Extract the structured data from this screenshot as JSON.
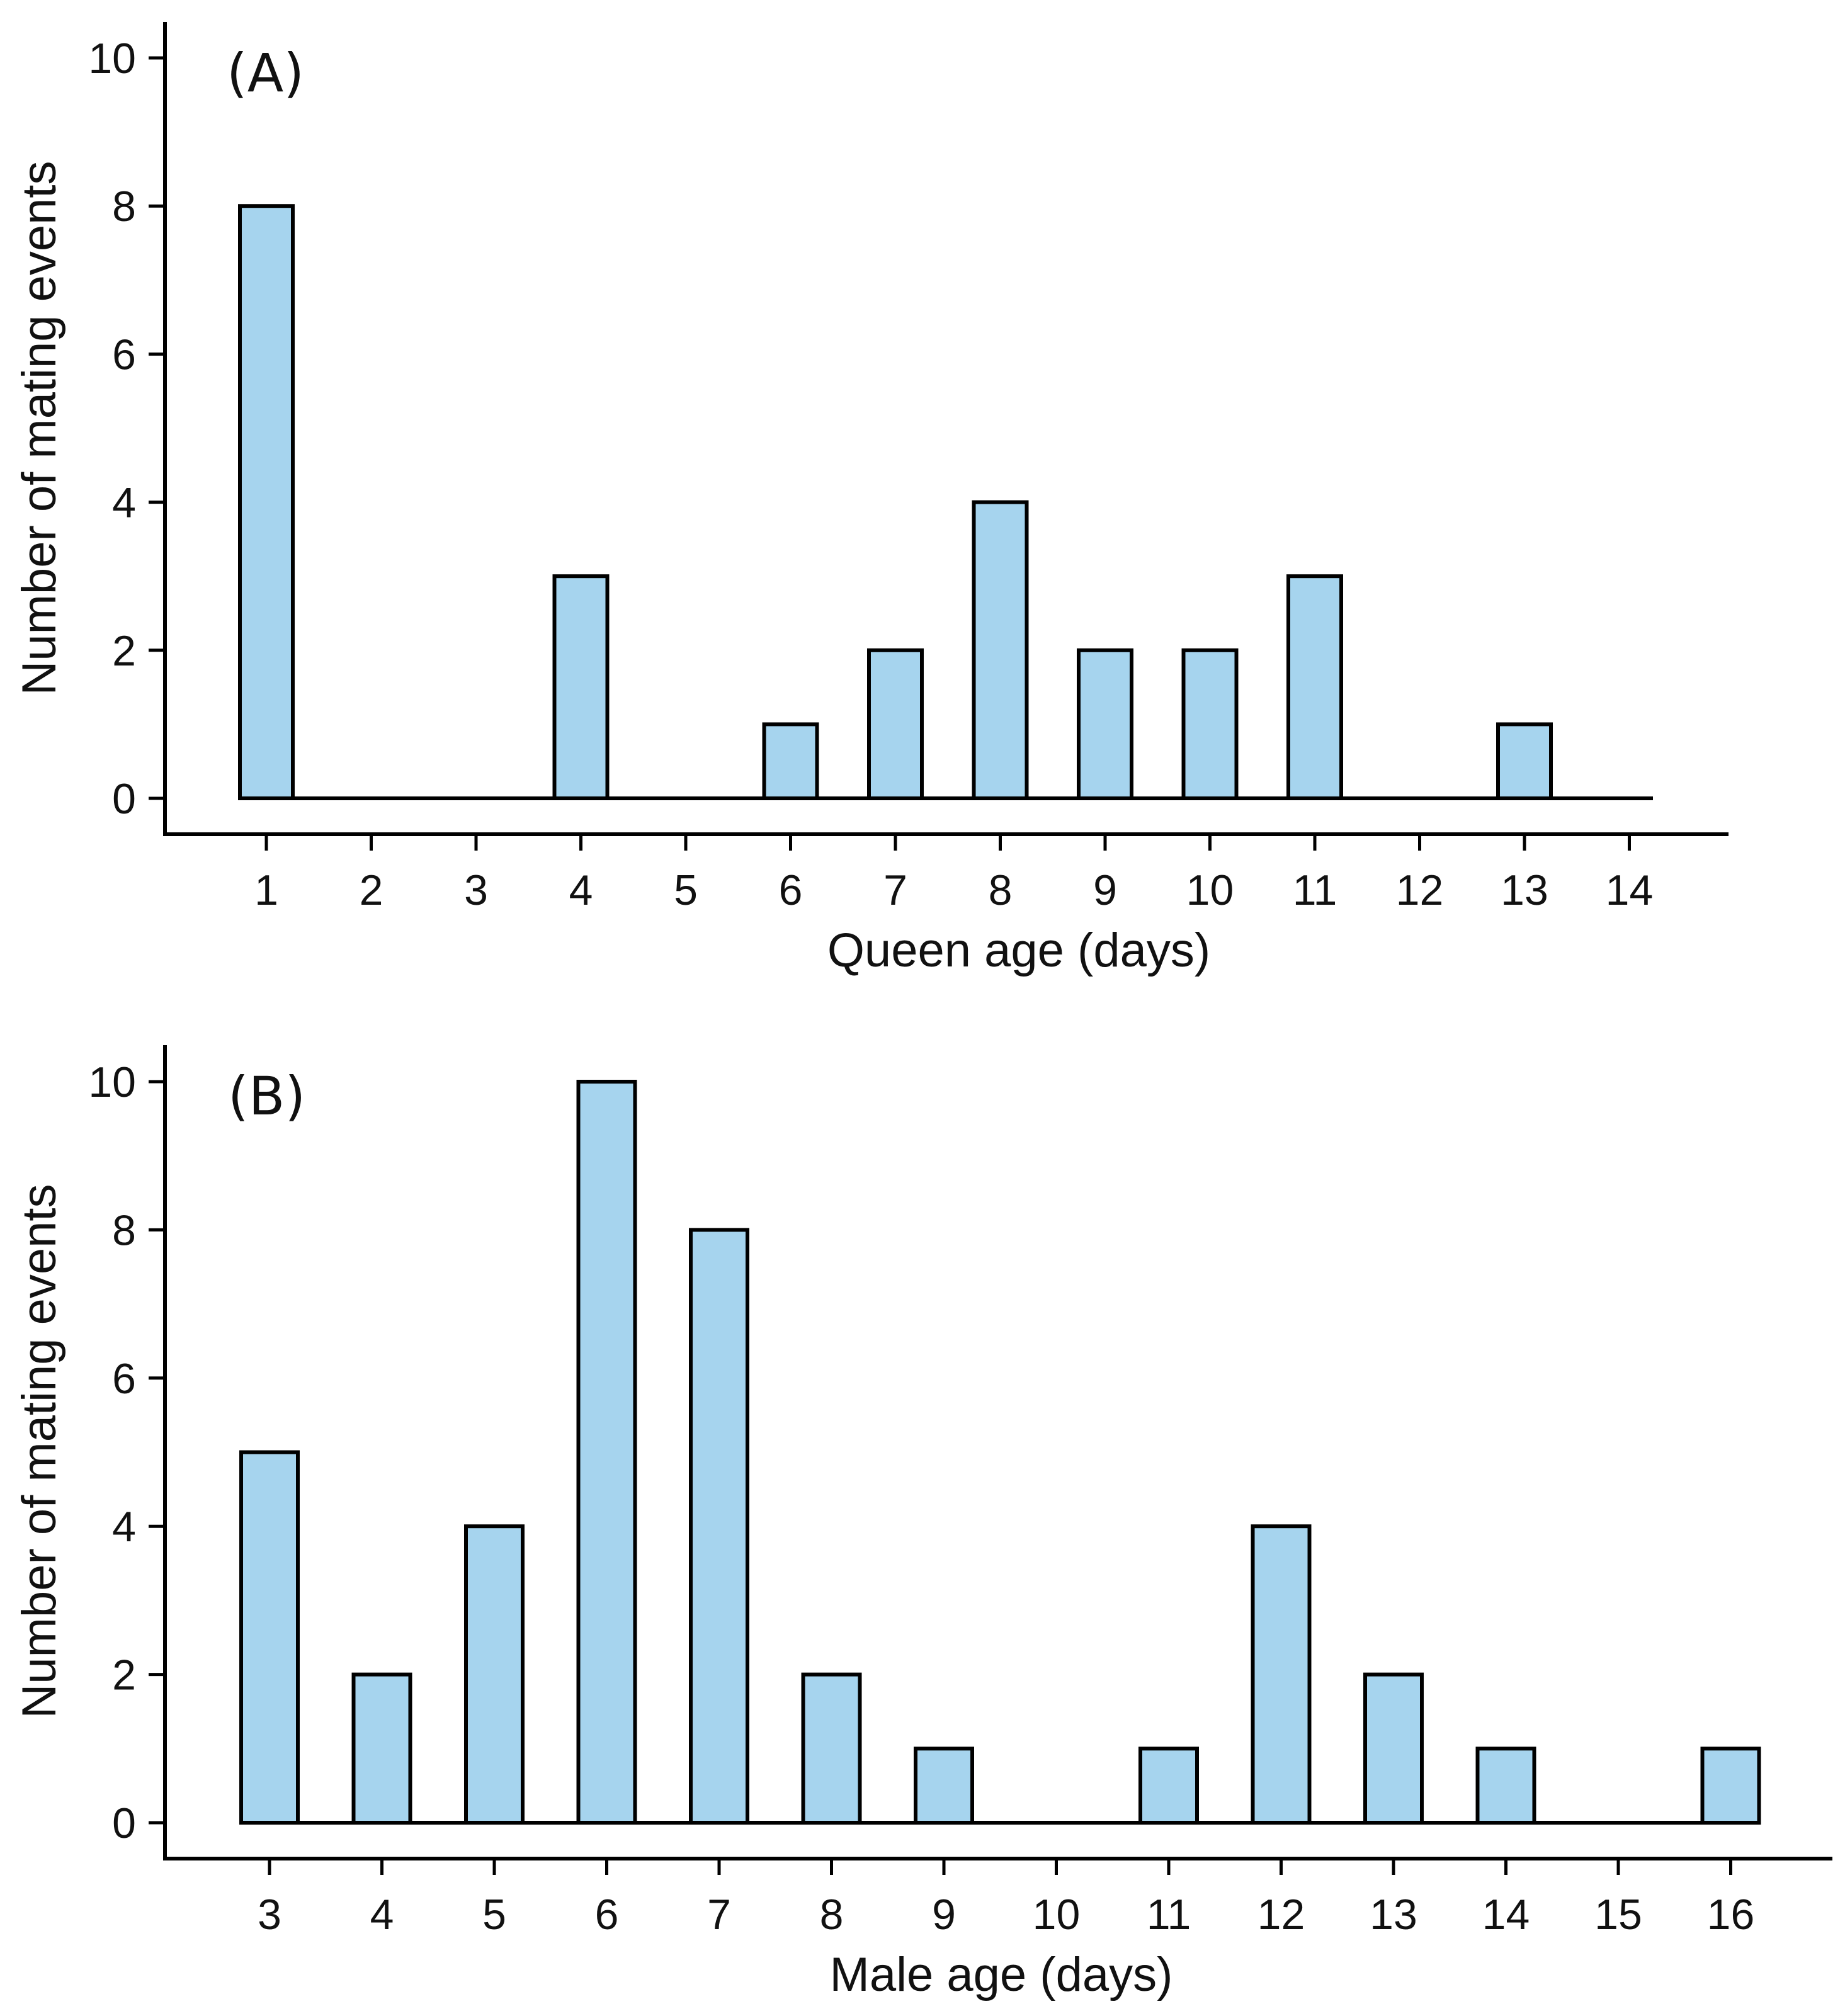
{
  "chart_data": [
    {
      "type": "bar",
      "panel_label": "(A)",
      "title": "",
      "xlabel": "Queen age (days)",
      "ylabel": "Number of mating events",
      "categories": [
        "1",
        "2",
        "3",
        "4",
        "5",
        "6",
        "7",
        "8",
        "9",
        "10",
        "11",
        "12",
        "13",
        "14"
      ],
      "values": [
        8,
        0,
        0,
        3,
        0,
        1,
        2,
        4,
        2,
        2,
        3,
        0,
        1,
        0
      ],
      "ylim": [
        0,
        10
      ],
      "yticks": [
        0,
        2,
        4,
        6,
        8,
        10
      ],
      "grid": false,
      "bar_color": "#a6d4ee"
    },
    {
      "type": "bar",
      "panel_label": "(B)",
      "title": "",
      "xlabel": "Male age (days)",
      "ylabel": "Number of mating events",
      "categories": [
        "3",
        "4",
        "5",
        "6",
        "7",
        "8",
        "9",
        "10",
        "11",
        "12",
        "13",
        "14",
        "15",
        "16"
      ],
      "values": [
        5,
        2,
        4,
        10,
        8,
        2,
        1,
        0,
        1,
        4,
        2,
        1,
        0,
        1
      ],
      "ylim": [
        0,
        10
      ],
      "yticks": [
        0,
        2,
        4,
        6,
        8,
        10
      ],
      "grid": false,
      "bar_color": "#a6d4ee"
    }
  ]
}
